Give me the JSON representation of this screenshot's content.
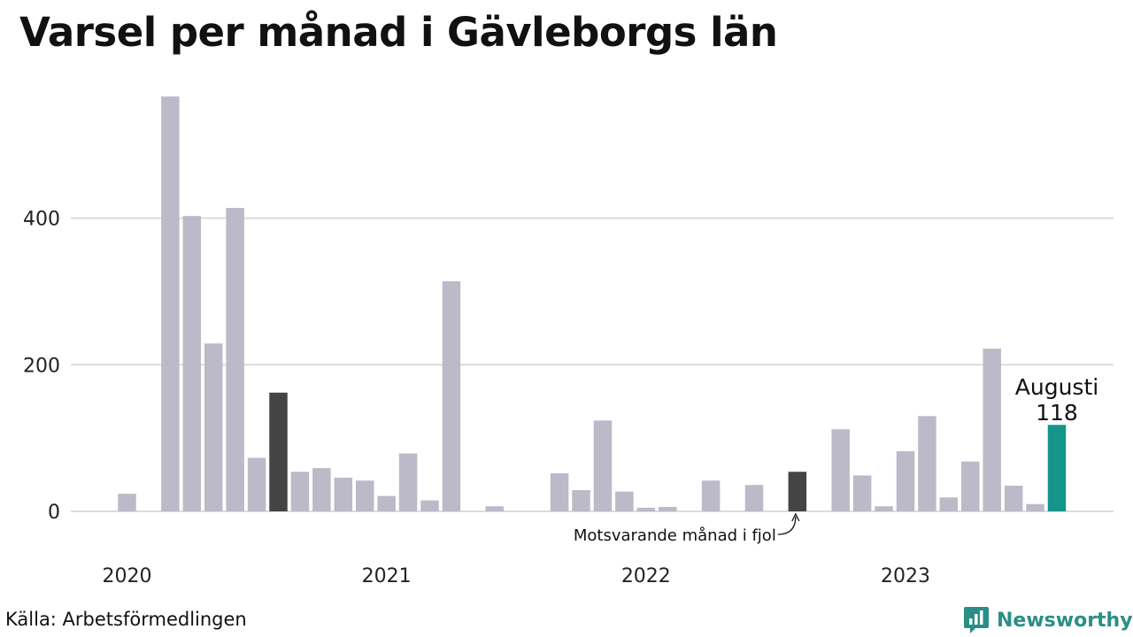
{
  "title": "Varsel per månad i Gävleborgs län",
  "source": "Källa: Arbetsförmedlingen",
  "brand": {
    "name": "Newsworthy",
    "icon": "newsworthy-logo-icon",
    "color": "#2a8f86"
  },
  "colors": {
    "default": "#bcbac8",
    "comparison": "#444444",
    "highlight": "#16968a",
    "grid": "#dcdcdc"
  },
  "chart_data": {
    "type": "bar",
    "title": "Varsel per månad i Gävleborgs län",
    "xlabel": "",
    "ylabel": "",
    "ylim": [
      0,
      600
    ],
    "yticks": [
      0,
      200,
      400
    ],
    "grid": true,
    "year_labels": [
      "2020",
      "2021",
      "2022",
      "2023"
    ],
    "categories": [
      "2020-01",
      "2020-02",
      "2020-03",
      "2020-04",
      "2020-05",
      "2020-06",
      "2020-07",
      "2020-08",
      "2020-09",
      "2020-10",
      "2020-11",
      "2020-12",
      "2021-01",
      "2021-02",
      "2021-03",
      "2021-04",
      "2021-05",
      "2021-06",
      "2021-07",
      "2021-08",
      "2021-09",
      "2021-10",
      "2021-11",
      "2021-12",
      "2022-01",
      "2022-02",
      "2022-03",
      "2022-04",
      "2022-05",
      "2022-06",
      "2022-07",
      "2022-08",
      "2022-09",
      "2022-10",
      "2022-11",
      "2022-12",
      "2023-01",
      "2023-02",
      "2023-03",
      "2023-04",
      "2023-05",
      "2023-06",
      "2023-07",
      "2023-08"
    ],
    "values": [
      24,
      0,
      566,
      403,
      229,
      414,
      73,
      162,
      54,
      59,
      46,
      42,
      21,
      79,
      15,
      314,
      0,
      7,
      0,
      0,
      52,
      29,
      124,
      27,
      5,
      6,
      0,
      42,
      0,
      36,
      0,
      54,
      0,
      112,
      49,
      7,
      82,
      130,
      19,
      68,
      222,
      35,
      10,
      118
    ],
    "highlight": {
      "category": "2023-08",
      "label": "Augusti",
      "value_label": "118"
    },
    "comparison": {
      "category": "2022-08",
      "annotation": "Motsvarande månad i fjol"
    },
    "extra_dark": [
      "2020-08"
    ]
  }
}
